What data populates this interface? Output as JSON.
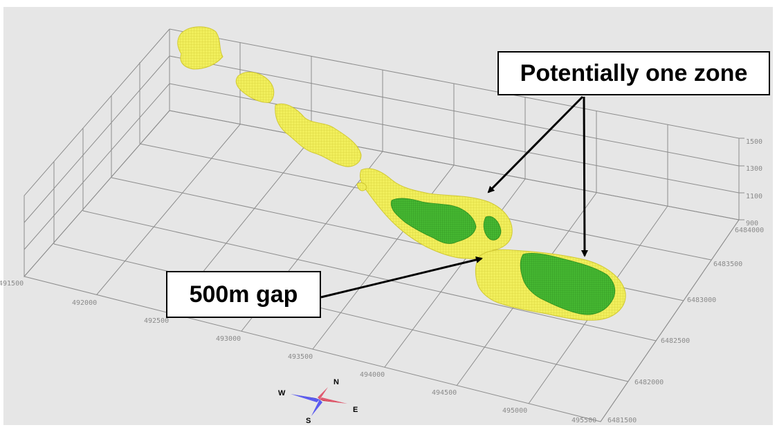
{
  "diagram": {
    "callouts": {
      "zone": "Potentially one zone",
      "gap": "500m gap"
    },
    "easting_ticks": [
      "491500",
      "492000",
      "492500",
      "493000",
      "493500",
      "494000",
      "494500",
      "495000",
      "495500"
    ],
    "northing_ticks": [
      "6481500",
      "6482000",
      "6482500",
      "6483000",
      "6483500",
      "6484000"
    ],
    "elevation_ticks": [
      "900",
      "1100",
      "1300",
      "1500"
    ],
    "compass": {
      "north": "N",
      "south": "S",
      "east": "E",
      "west": "W"
    },
    "colors": {
      "background": "#e6e6e6",
      "grid": "#8c8c8c",
      "shell": "#f0ee55",
      "shell_edge": "#d6d03a",
      "ore": "#46b832",
      "ore_dark": "#2f8f1f",
      "compass_blue": "#2a2ad6",
      "compass_red": "#d1283a"
    }
  }
}
